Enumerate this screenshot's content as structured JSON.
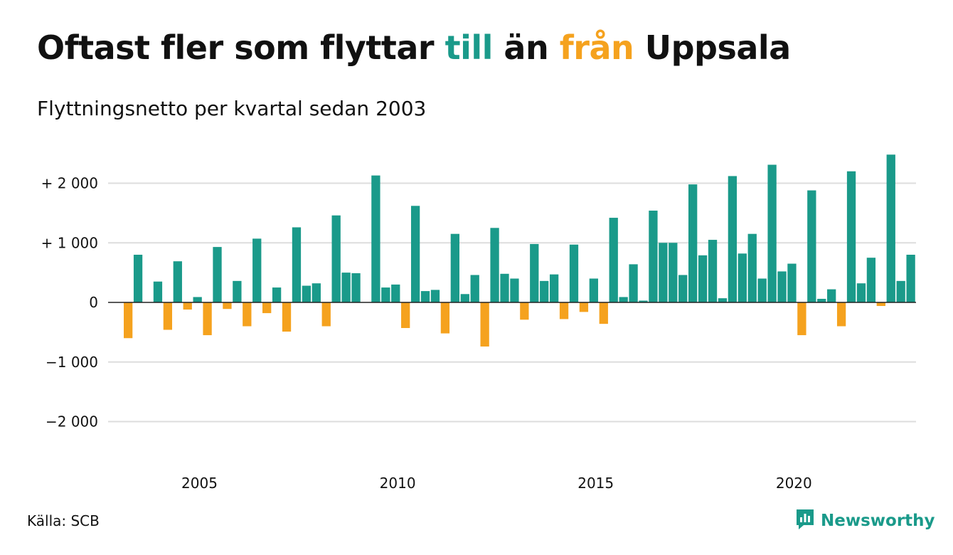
{
  "title": {
    "part1": "Oftast fler som flyttar ",
    "highlight_in": "till",
    "part2": " än ",
    "highlight_out": "från",
    "part3": " Uppsala"
  },
  "subtitle": "Flyttningsnetto per kvartal sedan 2003",
  "source": "Källa: SCB",
  "brand": {
    "name": "Newsworthy",
    "icon": "newsworthy-logo-icon"
  },
  "colors": {
    "positive": "#1a9a8a",
    "negative": "#f5a21e",
    "grid": "#dddddd",
    "zero_line": "#222222"
  },
  "chart_data": {
    "type": "bar",
    "title": "Oftast fler som flyttar till än från Uppsala",
    "subtitle": "Flyttningsnetto per kvartal sedan 2003",
    "xlabel": "",
    "ylabel": "",
    "ylim": [
      -2600,
      2600
    ],
    "grid": true,
    "x_start": {
      "year": 2003,
      "quarter": 2
    },
    "x_ticks": [
      {
        "year": 2005,
        "label": "2005"
      },
      {
        "year": 2010,
        "label": "2010"
      },
      {
        "year": 2015,
        "label": "2015"
      },
      {
        "year": 2020,
        "label": "2020"
      }
    ],
    "y_ticks": [
      {
        "value": 2000,
        "label": "+ 2 000"
      },
      {
        "value": 1000,
        "label": "+ 1 000"
      },
      {
        "value": 0,
        "label": "0"
      },
      {
        "value": -1000,
        "label": "−1 000"
      },
      {
        "value": -2000,
        "label": "−2 000"
      }
    ],
    "values": [
      -600,
      800,
      0,
      350,
      -460,
      690,
      -120,
      90,
      -550,
      930,
      -110,
      360,
      -400,
      1070,
      -180,
      250,
      -490,
      1260,
      280,
      320,
      -400,
      1460,
      500,
      490,
      0,
      2130,
      250,
      300,
      -430,
      1620,
      190,
      210,
      -520,
      1150,
      140,
      460,
      -740,
      1250,
      480,
      400,
      -290,
      980,
      360,
      470,
      -280,
      970,
      -160,
      400,
      -360,
      1420,
      90,
      640,
      30,
      1540,
      1000,
      1000,
      460,
      1980,
      790,
      1050,
      70,
      2120,
      820,
      1150,
      400,
      2310,
      520,
      650,
      -550,
      1880,
      60,
      220,
      -400,
      2200,
      320,
      750,
      -60,
      2480,
      360,
      800
    ]
  }
}
